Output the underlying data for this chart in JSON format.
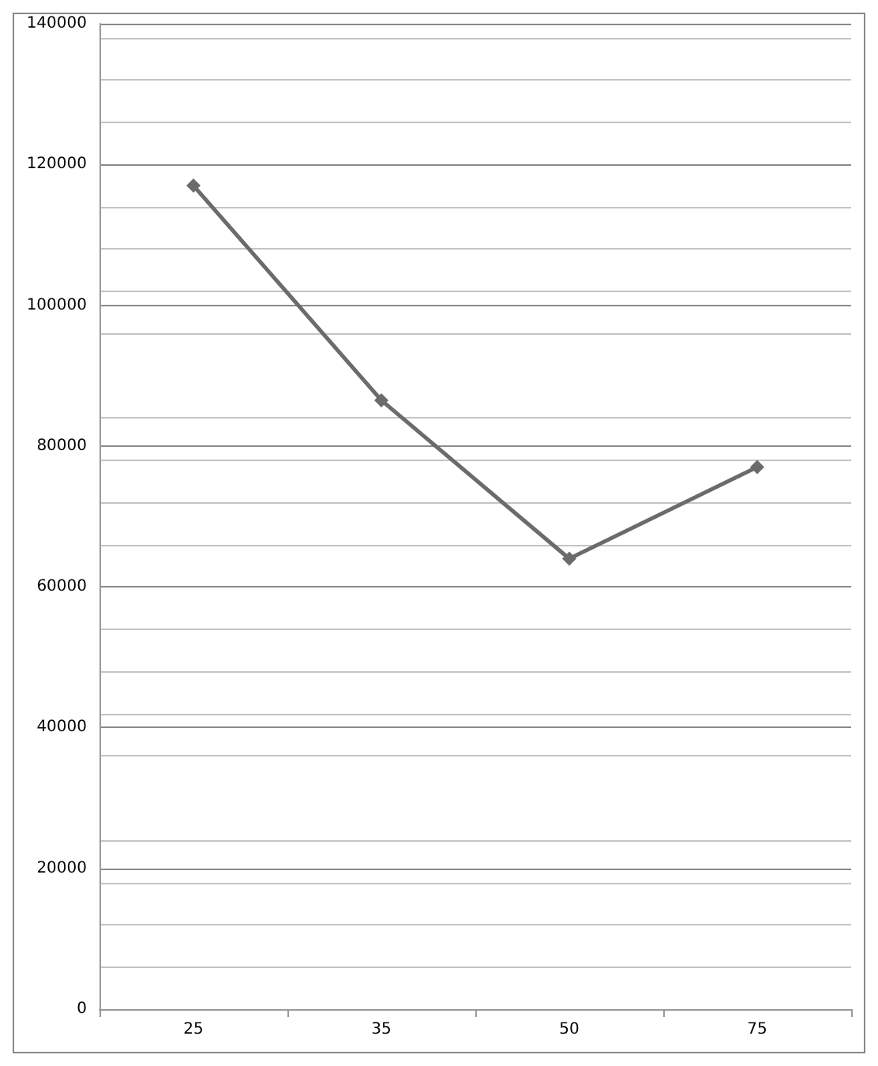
{
  "chart_data": {
    "type": "line",
    "categories": [
      "25",
      "35",
      "50",
      "75"
    ],
    "series": [
      {
        "color": "#6b6b6b",
        "values": [
          117000,
          86500,
          64000,
          77000
        ]
      }
    ],
    "ylim": [
      0,
      140000
    ],
    "yticks": [
      0,
      20000,
      40000,
      60000,
      80000,
      100000,
      120000,
      140000
    ],
    "grid": true,
    "marker": "diamond",
    "line_style": "solid"
  }
}
